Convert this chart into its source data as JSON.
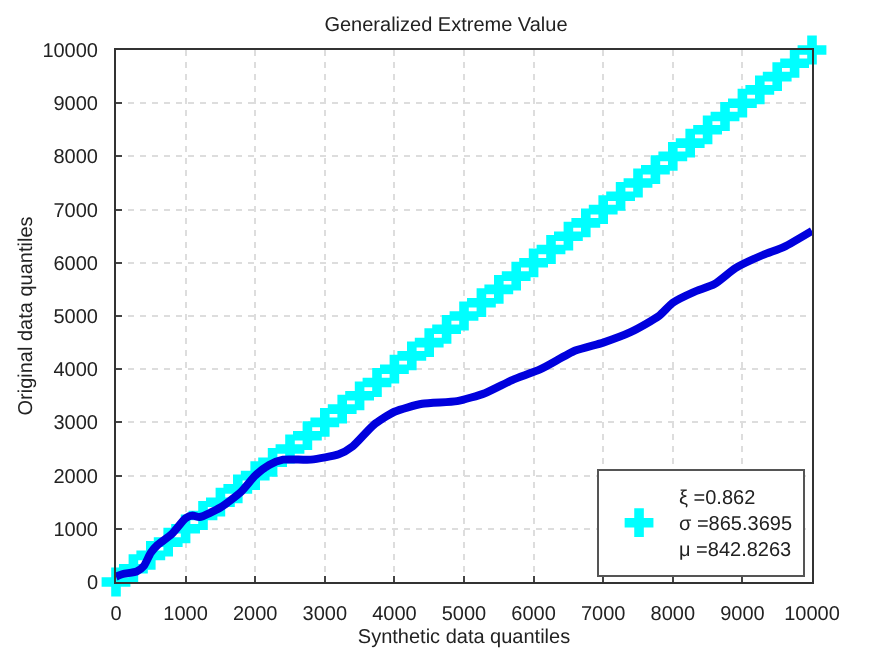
{
  "chart_data": {
    "type": "line",
    "title": "Generalized Extreme Value",
    "xlabel": "Synthetic data quantiles",
    "ylabel": "Original data quantiles",
    "xlim": [
      0,
      10000
    ],
    "ylim": [
      0,
      10000
    ],
    "xticks": [
      0,
      1000,
      2000,
      3000,
      4000,
      5000,
      6000,
      7000,
      8000,
      9000,
      10000
    ],
    "yticks": [
      0,
      1000,
      2000,
      3000,
      4000,
      5000,
      6000,
      7000,
      8000,
      9000,
      10000
    ],
    "grid": true,
    "legend": "bottom right",
    "series": [
      {
        "name": "ξ =0.862\nσ =865.3695\nμ =842.8263",
        "type": "scatter",
        "marker": "cross",
        "color": "#00ffff",
        "x": [
          0,
          250,
          500,
          750,
          1000,
          1250,
          1500,
          1750,
          2000,
          2250,
          2500,
          2750,
          3000,
          3250,
          3500,
          3750,
          4000,
          4250,
          4500,
          4750,
          5000,
          5250,
          5500,
          5750,
          6000,
          6250,
          6500,
          6750,
          7000,
          7250,
          7500,
          7750,
          8000,
          8250,
          8500,
          8750,
          9000,
          9250,
          9500,
          9750,
          10000
        ],
        "values": [
          0,
          250,
          500,
          750,
          1000,
          1250,
          1500,
          1750,
          2000,
          2250,
          2500,
          2750,
          3000,
          3250,
          3500,
          3750,
          4000,
          4250,
          4500,
          4750,
          5000,
          5250,
          5500,
          5750,
          6000,
          6250,
          6500,
          6750,
          7000,
          7250,
          7500,
          7750,
          8000,
          8250,
          8500,
          8750,
          9000,
          9250,
          9500,
          9750,
          10000
        ]
      },
      {
        "color": "#0000dd",
        "line_style": "solid",
        "x": [
          0,
          100,
          300,
          400,
          500,
          600,
          800,
          1000,
          1100,
          1200,
          1500,
          1800,
          2000,
          2200,
          2400,
          2800,
          3200,
          3400,
          3700,
          4000,
          4400,
          4900,
          5300,
          5700,
          6100,
          6600,
          7000,
          7400,
          7800,
          8000,
          8300,
          8600,
          8900,
          9300,
          9600,
          10000
        ],
        "values": [
          100,
          150,
          200,
          300,
          550,
          700,
          900,
          1200,
          1250,
          1220,
          1400,
          1700,
          2000,
          2200,
          2300,
          2300,
          2400,
          2550,
          2950,
          3200,
          3350,
          3400,
          3550,
          3800,
          4000,
          4350,
          4500,
          4700,
          5000,
          5250,
          5450,
          5600,
          5900,
          6150,
          6300,
          6600
        ]
      }
    ]
  }
}
